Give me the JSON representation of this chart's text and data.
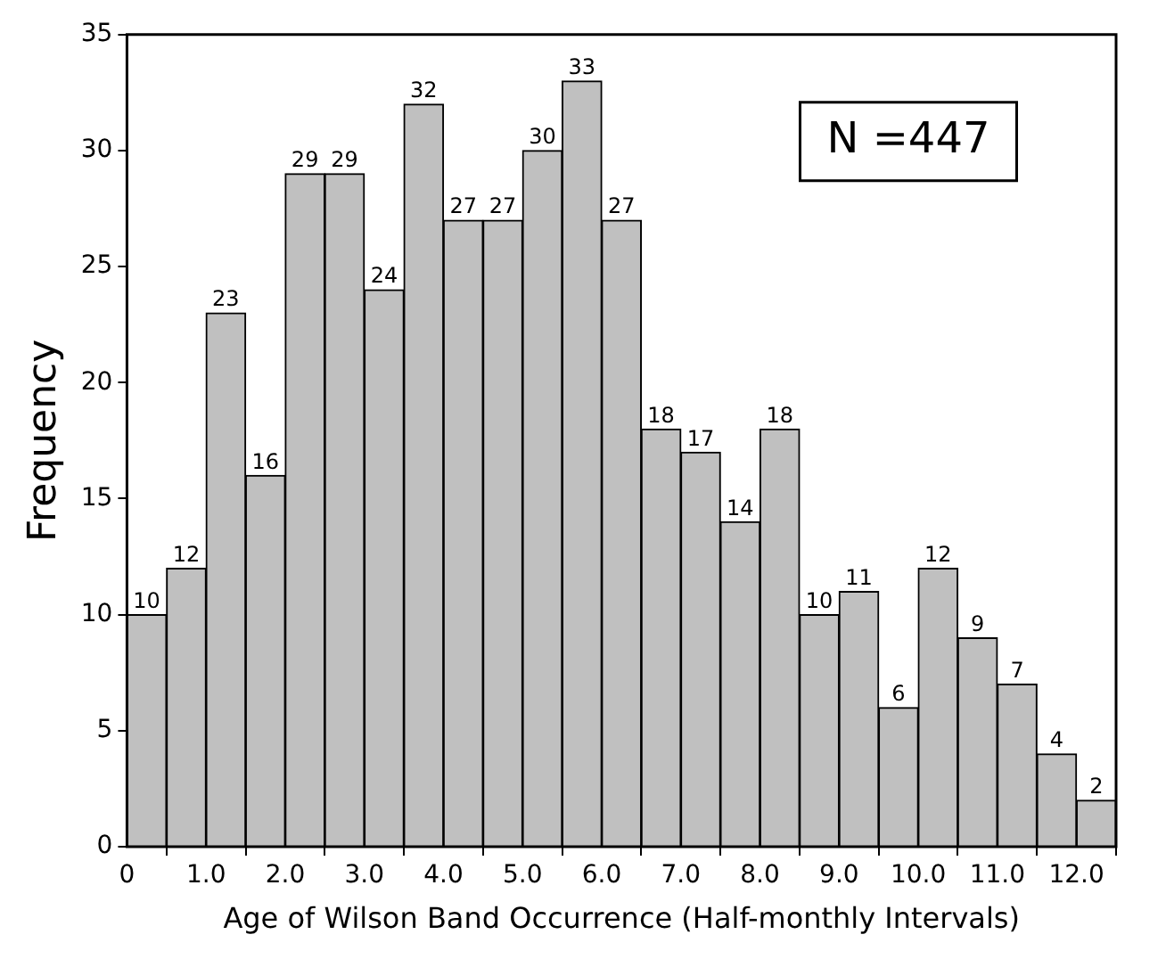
{
  "chart_data": {
    "type": "histogram",
    "xlabel": "Age of Wilson Band Occurrence (Half-monthly Intervals)",
    "ylabel": "Frequency",
    "bins": [
      0,
      0.5,
      1,
      1.5,
      2,
      2.5,
      3,
      3.5,
      4,
      4.5,
      5,
      5.5,
      6,
      6.5,
      7,
      7.5,
      8,
      8.5,
      9,
      9.5,
      10,
      10.5,
      11,
      11.5,
      12,
      12.5
    ],
    "values": [
      10,
      12,
      23,
      16,
      29,
      29,
      24,
      32,
      27,
      27,
      30,
      33,
      27,
      18,
      17,
      14,
      18,
      10,
      11,
      6,
      12,
      9,
      7,
      4,
      2
    ],
    "color": "#c0c0c0",
    "data_labels": true,
    "grid": false,
    "legend": false,
    "annotations": [
      "N =447"
    ],
    "xlim": [
      0,
      12.5
    ],
    "xticks": [
      0,
      {
        "value": 1,
        "label": "1.0"
      },
      {
        "value": 2,
        "label": "2.0"
      },
      {
        "value": 3,
        "label": "3.0"
      },
      {
        "value": 4,
        "label": "4.0"
      },
      {
        "value": 5,
        "label": "5.0"
      },
      {
        "value": 6,
        "label": "6.0"
      },
      {
        "value": 7,
        "label": "7.0"
      },
      {
        "value": 8,
        "label": "8.0"
      },
      {
        "value": 9,
        "label": "9.0"
      },
      {
        "value": 10,
        "label": "10.0"
      },
      {
        "value": 11,
        "label": "11.0"
      },
      {
        "value": 12,
        "label": "12.0"
      }
    ],
    "ylim": [
      0,
      35
    ],
    "yticks": [
      0,
      5,
      10,
      15,
      20,
      25,
      30,
      35
    ]
  }
}
